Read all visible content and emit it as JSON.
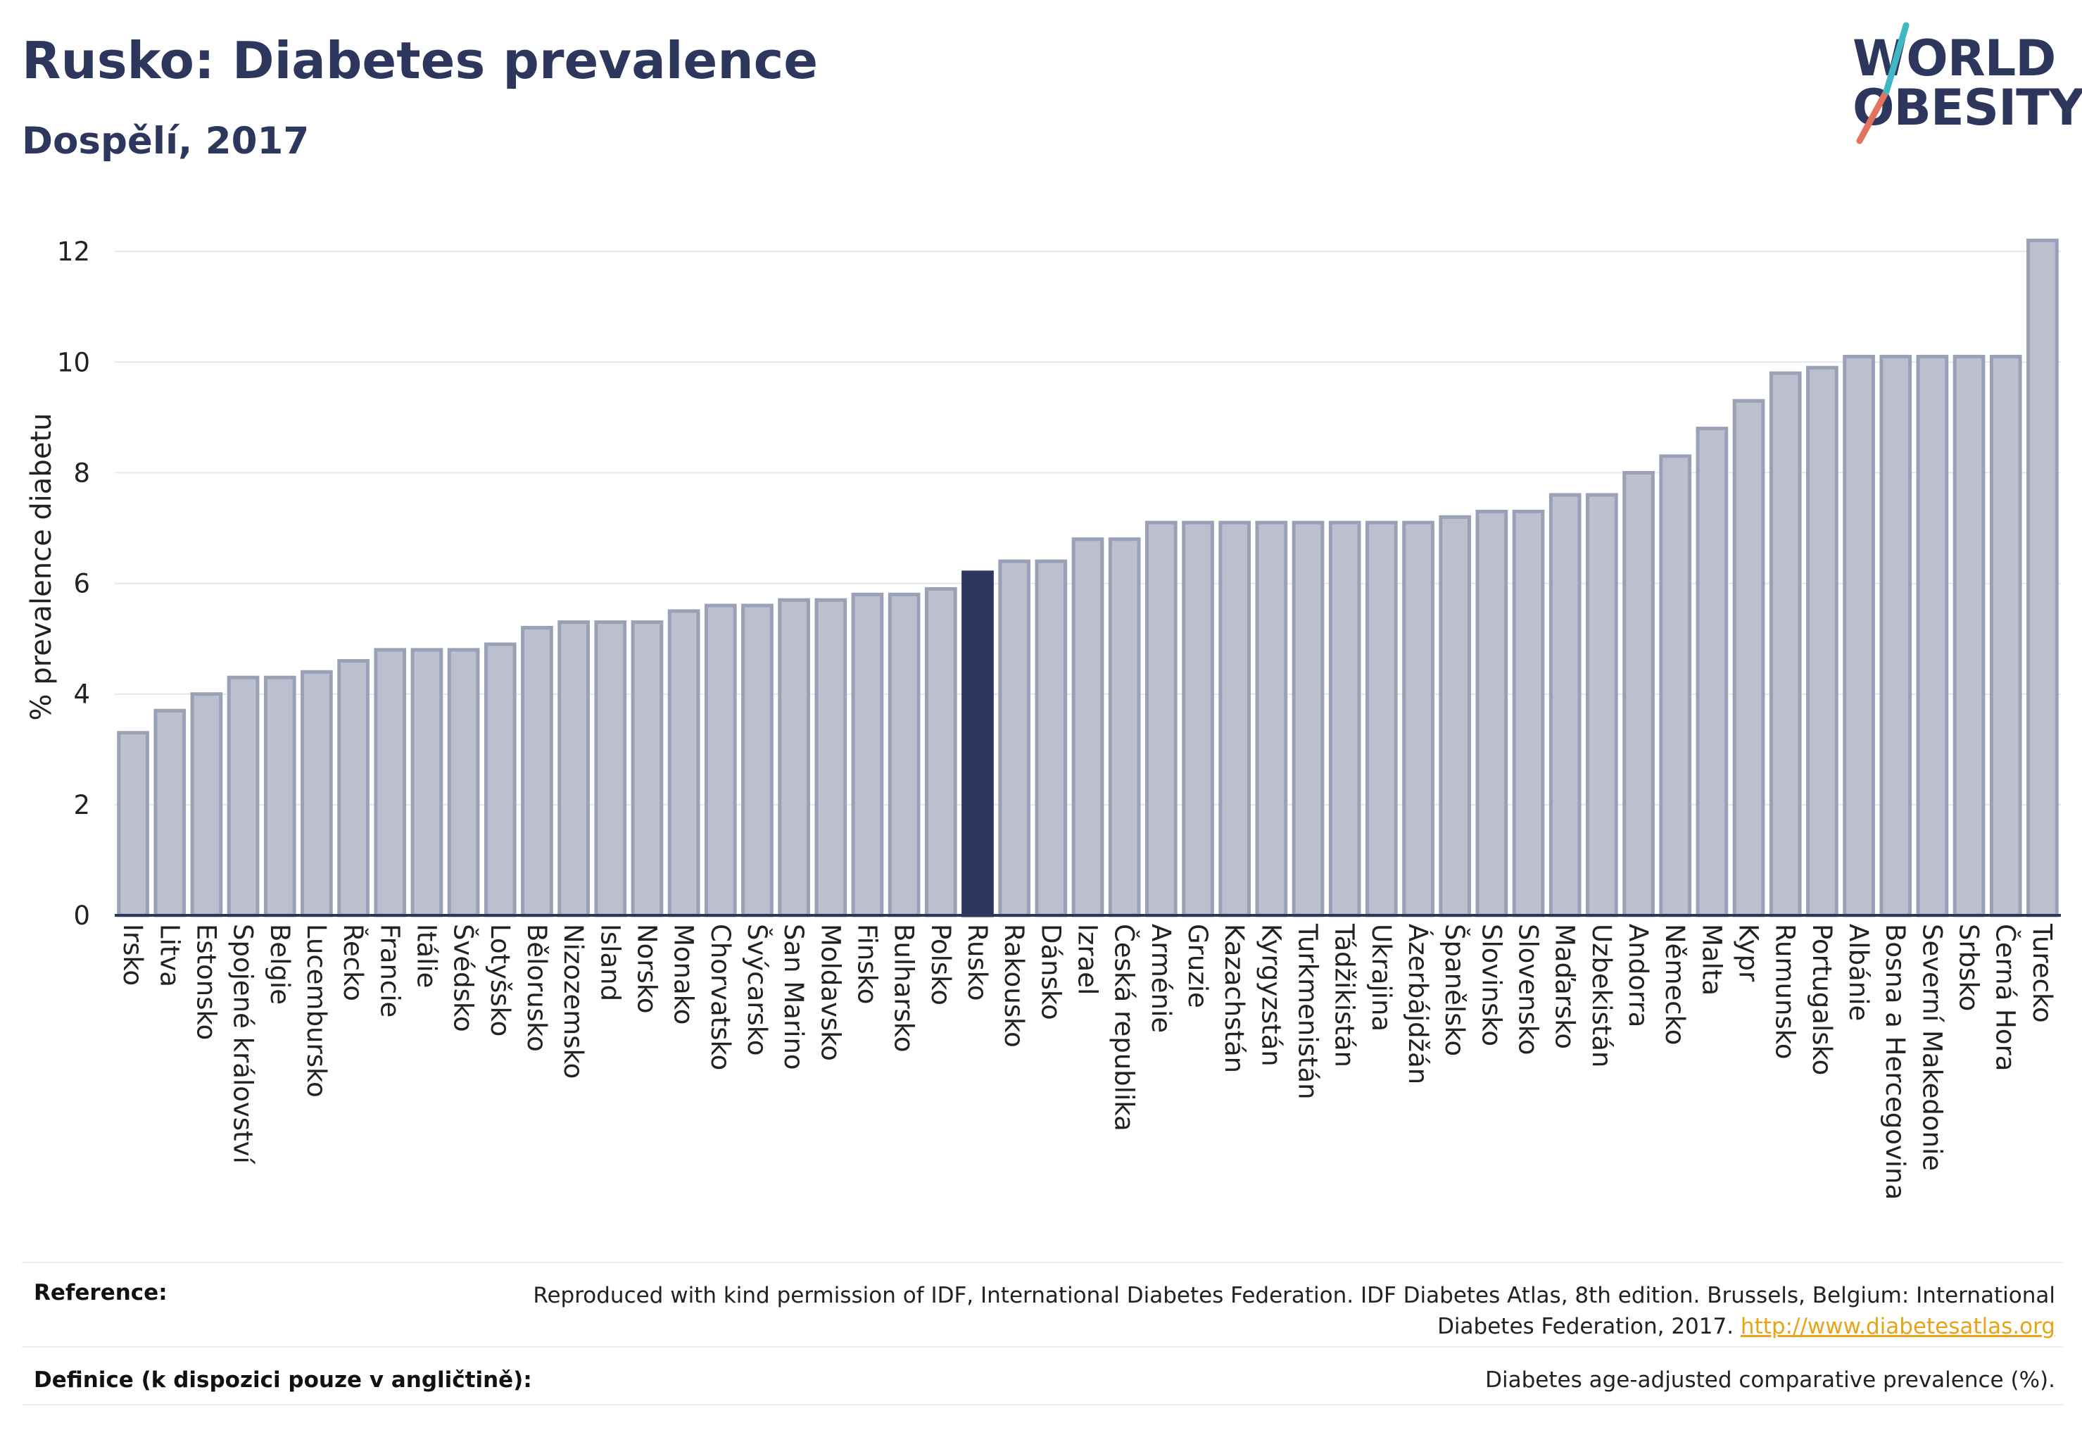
{
  "header": {
    "title": "Rusko: Diabetes prevalence",
    "subtitle": "Dospělí, 2017"
  },
  "logo": {
    "line1": "WORLD",
    "line2": "OBESITY"
  },
  "chart_data": {
    "type": "bar",
    "title": "Rusko: Diabetes prevalence",
    "subtitle": "Dospělí, 2017",
    "ylabel": "% prevalence diabetu",
    "xlabel": "",
    "ylim": [
      0,
      12.6
    ],
    "yticks": [
      0,
      2,
      4,
      6,
      8,
      10,
      12
    ],
    "grid": true,
    "highlight": "Rusko",
    "colors": {
      "bar": "#bcc0ce",
      "bar_edge": "#9aa0b6",
      "highlight": "#2d365c",
      "axis": "#2d365c",
      "grid": "#e6e7ec"
    },
    "categories": [
      "Irsko",
      "Litva",
      "Estonsko",
      "Spojené království",
      "Belgie",
      "Lucembursko",
      "Řecko",
      "Francie",
      "Itálie",
      "Švédsko",
      "Lotyšsko",
      "Bělorusko",
      "Nizozemsko",
      "Island",
      "Norsko",
      "Monako",
      "Chorvatsko",
      "Švýcarsko",
      "San Marino",
      "Moldavsko",
      "Finsko",
      "Bulharsko",
      "Polsko",
      "Rusko",
      "Rakousko",
      "Dánsko",
      "Izrael",
      "Česká republika",
      "Arménie",
      "Gruzie",
      "Kazachstán",
      "Kyrgyzstán",
      "Turkmenistán",
      "Tádžikistán",
      "Ukrajina",
      "Ázerbájdžán",
      "Španělsko",
      "Slovinsko",
      "Slovensko",
      "Maďarsko",
      "Uzbekistán",
      "Andorra",
      "Německo",
      "Malta",
      "Kypr",
      "Rumunsko",
      "Portugalsko",
      "Albánie",
      "Bosna a Hercegovina",
      "Severní Makedonie",
      "Srbsko",
      "Černá Hora",
      "Turecko"
    ],
    "values": [
      3.3,
      3.7,
      4.0,
      4.3,
      4.3,
      4.4,
      4.6,
      4.8,
      4.8,
      4.8,
      4.9,
      5.2,
      5.3,
      5.3,
      5.3,
      5.5,
      5.6,
      5.6,
      5.7,
      5.7,
      5.8,
      5.8,
      5.9,
      6.2,
      6.4,
      6.4,
      6.8,
      6.8,
      7.1,
      7.1,
      7.1,
      7.1,
      7.1,
      7.1,
      7.1,
      7.1,
      7.2,
      7.3,
      7.3,
      7.6,
      7.6,
      8.0,
      8.3,
      8.8,
      9.3,
      9.8,
      9.9,
      10.1,
      10.1,
      10.1,
      10.1,
      10.1,
      12.2
    ]
  },
  "footer": {
    "reference_label": "Reference:",
    "reference_text": "Reproduced with kind permission of IDF, International Diabetes Federation. IDF Diabetes Atlas, 8th edition. Brussels, Belgium: International Diabetes Federation, 2017.",
    "reference_link": "http://www.diabetesatlas.org",
    "definition_label": "Definice (k dispozici pouze v angličtině):",
    "definition_text": "Diabetes age-adjusted comparative prevalence (%)."
  }
}
